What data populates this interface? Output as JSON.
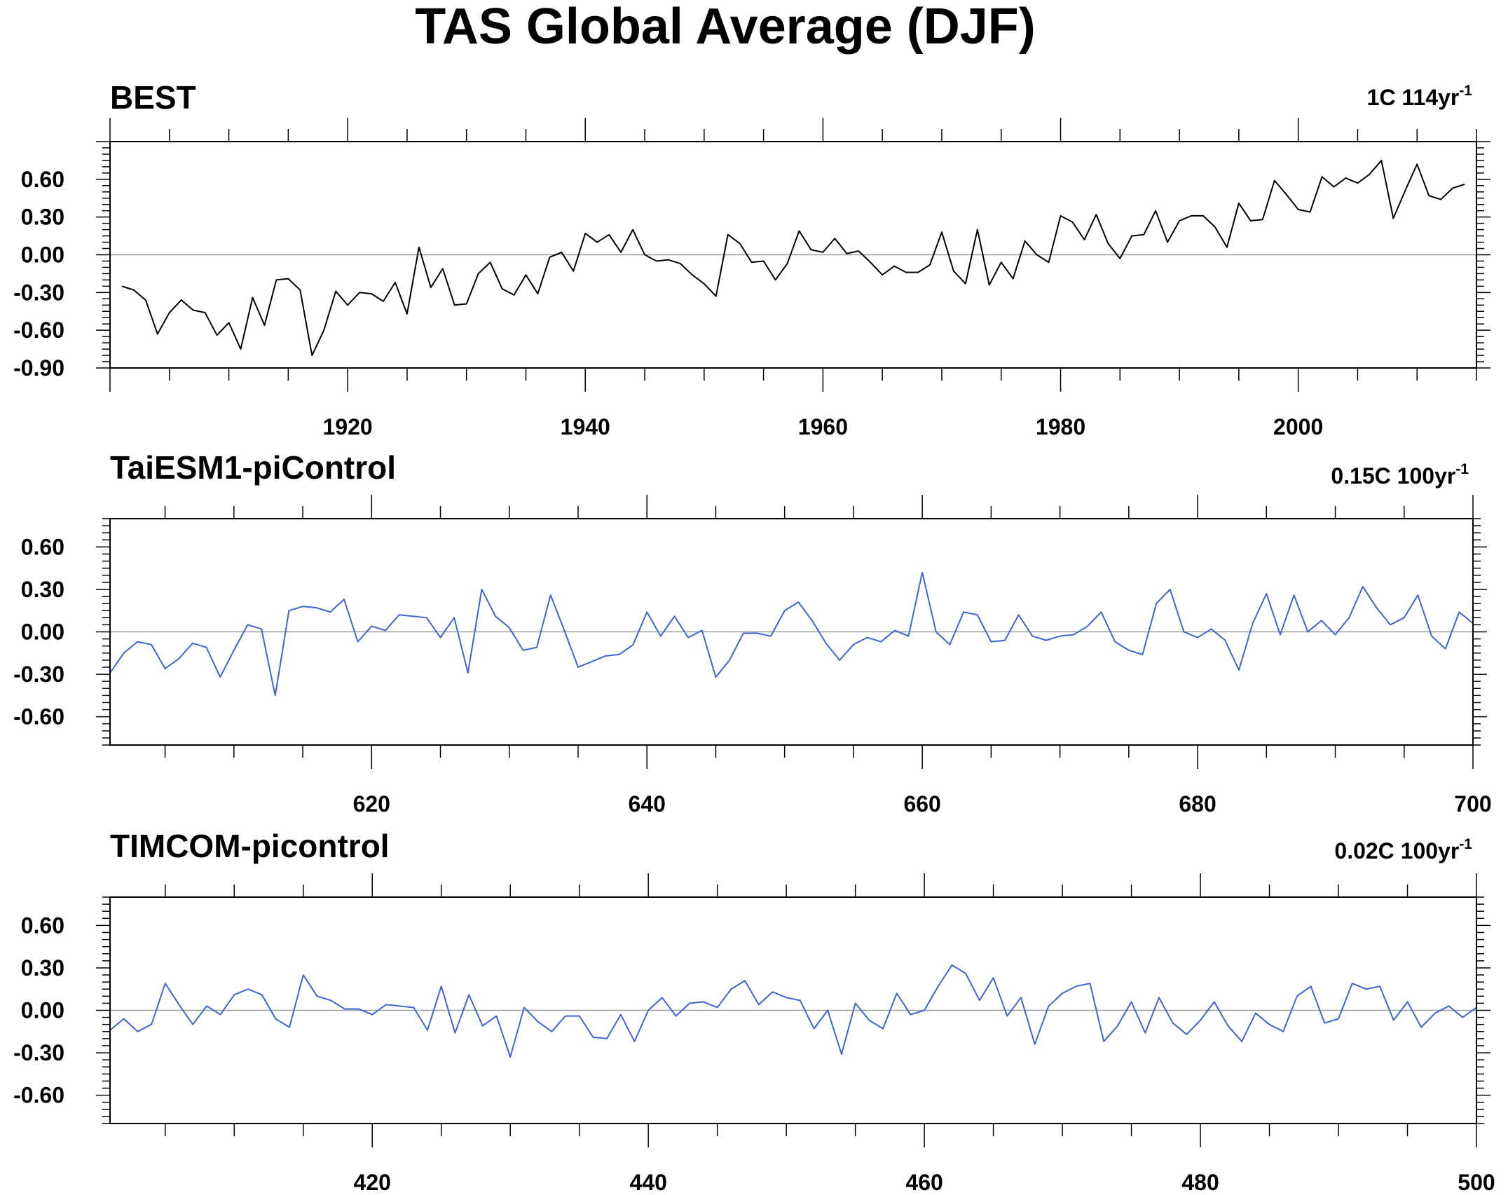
{
  "figure": {
    "title": "TAS Global Average (DJF)"
  },
  "chart_data": [
    {
      "type": "line",
      "title": "BEST",
      "trend_label": "1C 114yr",
      "trend_sup": "-1",
      "xlim": [
        1900,
        2015
      ],
      "ylim": [
        -0.9,
        0.9
      ],
      "xticks": [
        1920,
        1940,
        1960,
        1980,
        2000
      ],
      "yticks": [
        -0.9,
        -0.6,
        -0.3,
        0.0,
        0.3,
        0.6
      ],
      "ytick_labels": [
        "-0.90",
        "-0.60",
        "-0.30",
        "0.00",
        "0.30",
        "0.60"
      ],
      "grid": false,
      "color": "#000000",
      "x_start": 1901,
      "values": [
        -0.25,
        -0.28,
        -0.36,
        -0.63,
        -0.46,
        -0.36,
        -0.44,
        -0.46,
        -0.64,
        -0.54,
        -0.75,
        -0.34,
        -0.56,
        -0.2,
        -0.19,
        -0.28,
        -0.8,
        -0.6,
        -0.29,
        -0.4,
        -0.3,
        -0.31,
        -0.37,
        -0.22,
        -0.47,
        0.06,
        -0.26,
        -0.11,
        -0.4,
        -0.39,
        -0.15,
        -0.06,
        -0.27,
        -0.32,
        -0.16,
        -0.31,
        -0.02,
        0.02,
        -0.13,
        0.17,
        0.1,
        0.16,
        0.02,
        0.2,
        0.0,
        -0.05,
        -0.04,
        -0.07,
        -0.16,
        -0.23,
        -0.33,
        0.16,
        0.09,
        -0.06,
        -0.05,
        -0.2,
        -0.07,
        0.19,
        0.04,
        0.02,
        0.13,
        0.01,
        0.03,
        -0.06,
        -0.16,
        -0.09,
        -0.14,
        -0.14,
        -0.08,
        0.18,
        -0.13,
        -0.23,
        0.2,
        -0.24,
        -0.06,
        -0.19,
        0.11,
        0.0,
        -0.06,
        0.31,
        0.26,
        0.12,
        0.32,
        0.09,
        -0.03,
        0.15,
        0.16,
        0.35,
        0.1,
        0.27,
        0.31,
        0.31,
        0.22,
        0.06,
        0.41,
        0.27,
        0.28,
        0.59,
        0.48,
        0.36,
        0.34,
        0.62,
        0.54,
        0.61,
        0.57,
        0.64,
        0.75,
        0.29,
        0.51,
        0.72,
        0.47,
        0.44,
        0.53,
        0.56
      ]
    },
    {
      "type": "line",
      "title": "TaiESM1-piControl",
      "trend_label": "0.15C 100yr",
      "trend_sup": "-1",
      "xlim": [
        601,
        700
      ],
      "ylim": [
        -0.8,
        0.8
      ],
      "xticks": [
        620,
        640,
        660,
        680,
        700
      ],
      "yticks": [
        -0.6,
        -0.3,
        0.0,
        0.3,
        0.6
      ],
      "ytick_labels": [
        "-0.60",
        "-0.30",
        "0.00",
        "0.30",
        "0.60"
      ],
      "grid": false,
      "color": "#3e64d6",
      "x_start": 601,
      "values": [
        -0.29,
        -0.15,
        -0.07,
        -0.09,
        -0.26,
        -0.19,
        -0.08,
        -0.11,
        -0.32,
        -0.13,
        0.05,
        0.02,
        -0.45,
        0.15,
        0.18,
        0.17,
        0.14,
        0.23,
        -0.07,
        0.04,
        0.01,
        0.12,
        0.11,
        0.1,
        -0.04,
        0.1,
        -0.29,
        0.3,
        0.11,
        0.03,
        -0.13,
        -0.11,
        0.26,
        0.01,
        -0.25,
        -0.21,
        -0.17,
        -0.16,
        -0.09,
        0.14,
        -0.03,
        0.11,
        -0.04,
        0.01,
        -0.32,
        -0.2,
        -0.01,
        -0.01,
        -0.03,
        0.15,
        0.21,
        0.08,
        -0.08,
        -0.2,
        -0.09,
        -0.04,
        -0.07,
        0.01,
        -0.03,
        0.42,
        0.0,
        -0.09,
        0.14,
        0.12,
        -0.07,
        -0.06,
        0.12,
        -0.03,
        -0.06,
        -0.03,
        -0.02,
        0.04,
        0.14,
        -0.07,
        -0.13,
        -0.16,
        0.2,
        0.3,
        0.0,
        -0.04,
        0.02,
        -0.06,
        -0.27,
        0.06,
        0.27,
        -0.02,
        0.26,
        0.0,
        0.08,
        -0.02,
        0.1,
        0.32,
        0.17,
        0.05,
        0.1,
        0.26,
        -0.03,
        -0.12,
        0.14,
        0.06
      ]
    },
    {
      "type": "line",
      "title": "TIMCOM-picontrol",
      "trend_label": "0.02C 100yr",
      "trend_sup": "-1",
      "xlim": [
        401,
        500
      ],
      "ylim": [
        -0.8,
        0.8
      ],
      "xticks": [
        420,
        440,
        460,
        480,
        500
      ],
      "yticks": [
        -0.6,
        -0.3,
        0.0,
        0.3,
        0.6
      ],
      "ytick_labels": [
        "-0.60",
        "-0.30",
        "0.00",
        "0.30",
        "0.60"
      ],
      "grid": false,
      "color": "#3e64d6",
      "x_start": 401,
      "values": [
        -0.14,
        -0.06,
        -0.15,
        -0.1,
        0.19,
        0.04,
        -0.1,
        0.03,
        -0.03,
        0.11,
        0.15,
        0.11,
        -0.06,
        -0.12,
        0.25,
        0.1,
        0.07,
        0.01,
        0.01,
        -0.03,
        0.04,
        0.03,
        0.02,
        -0.14,
        0.17,
        -0.16,
        0.11,
        -0.11,
        -0.04,
        -0.33,
        0.02,
        -0.08,
        -0.15,
        -0.04,
        -0.04,
        -0.19,
        -0.2,
        -0.03,
        -0.22,
        0.0,
        0.09,
        -0.04,
        0.05,
        0.06,
        0.02,
        0.15,
        0.21,
        0.04,
        0.13,
        0.09,
        0.07,
        -0.13,
        0.0,
        -0.31,
        0.05,
        -0.07,
        -0.13,
        0.12,
        -0.03,
        0.0,
        0.17,
        0.32,
        0.26,
        0.07,
        0.23,
        -0.04,
        0.09,
        -0.24,
        0.03,
        0.12,
        0.17,
        0.19,
        -0.22,
        -0.11,
        0.06,
        -0.16,
        0.09,
        -0.09,
        -0.17,
        -0.07,
        0.06,
        -0.11,
        -0.22,
        -0.02,
        -0.1,
        -0.15,
        0.1,
        0.17,
        -0.09,
        -0.06,
        0.19,
        0.15,
        0.17,
        -0.07,
        0.06,
        -0.12,
        -0.02,
        0.03,
        -0.05,
        0.02
      ]
    }
  ]
}
